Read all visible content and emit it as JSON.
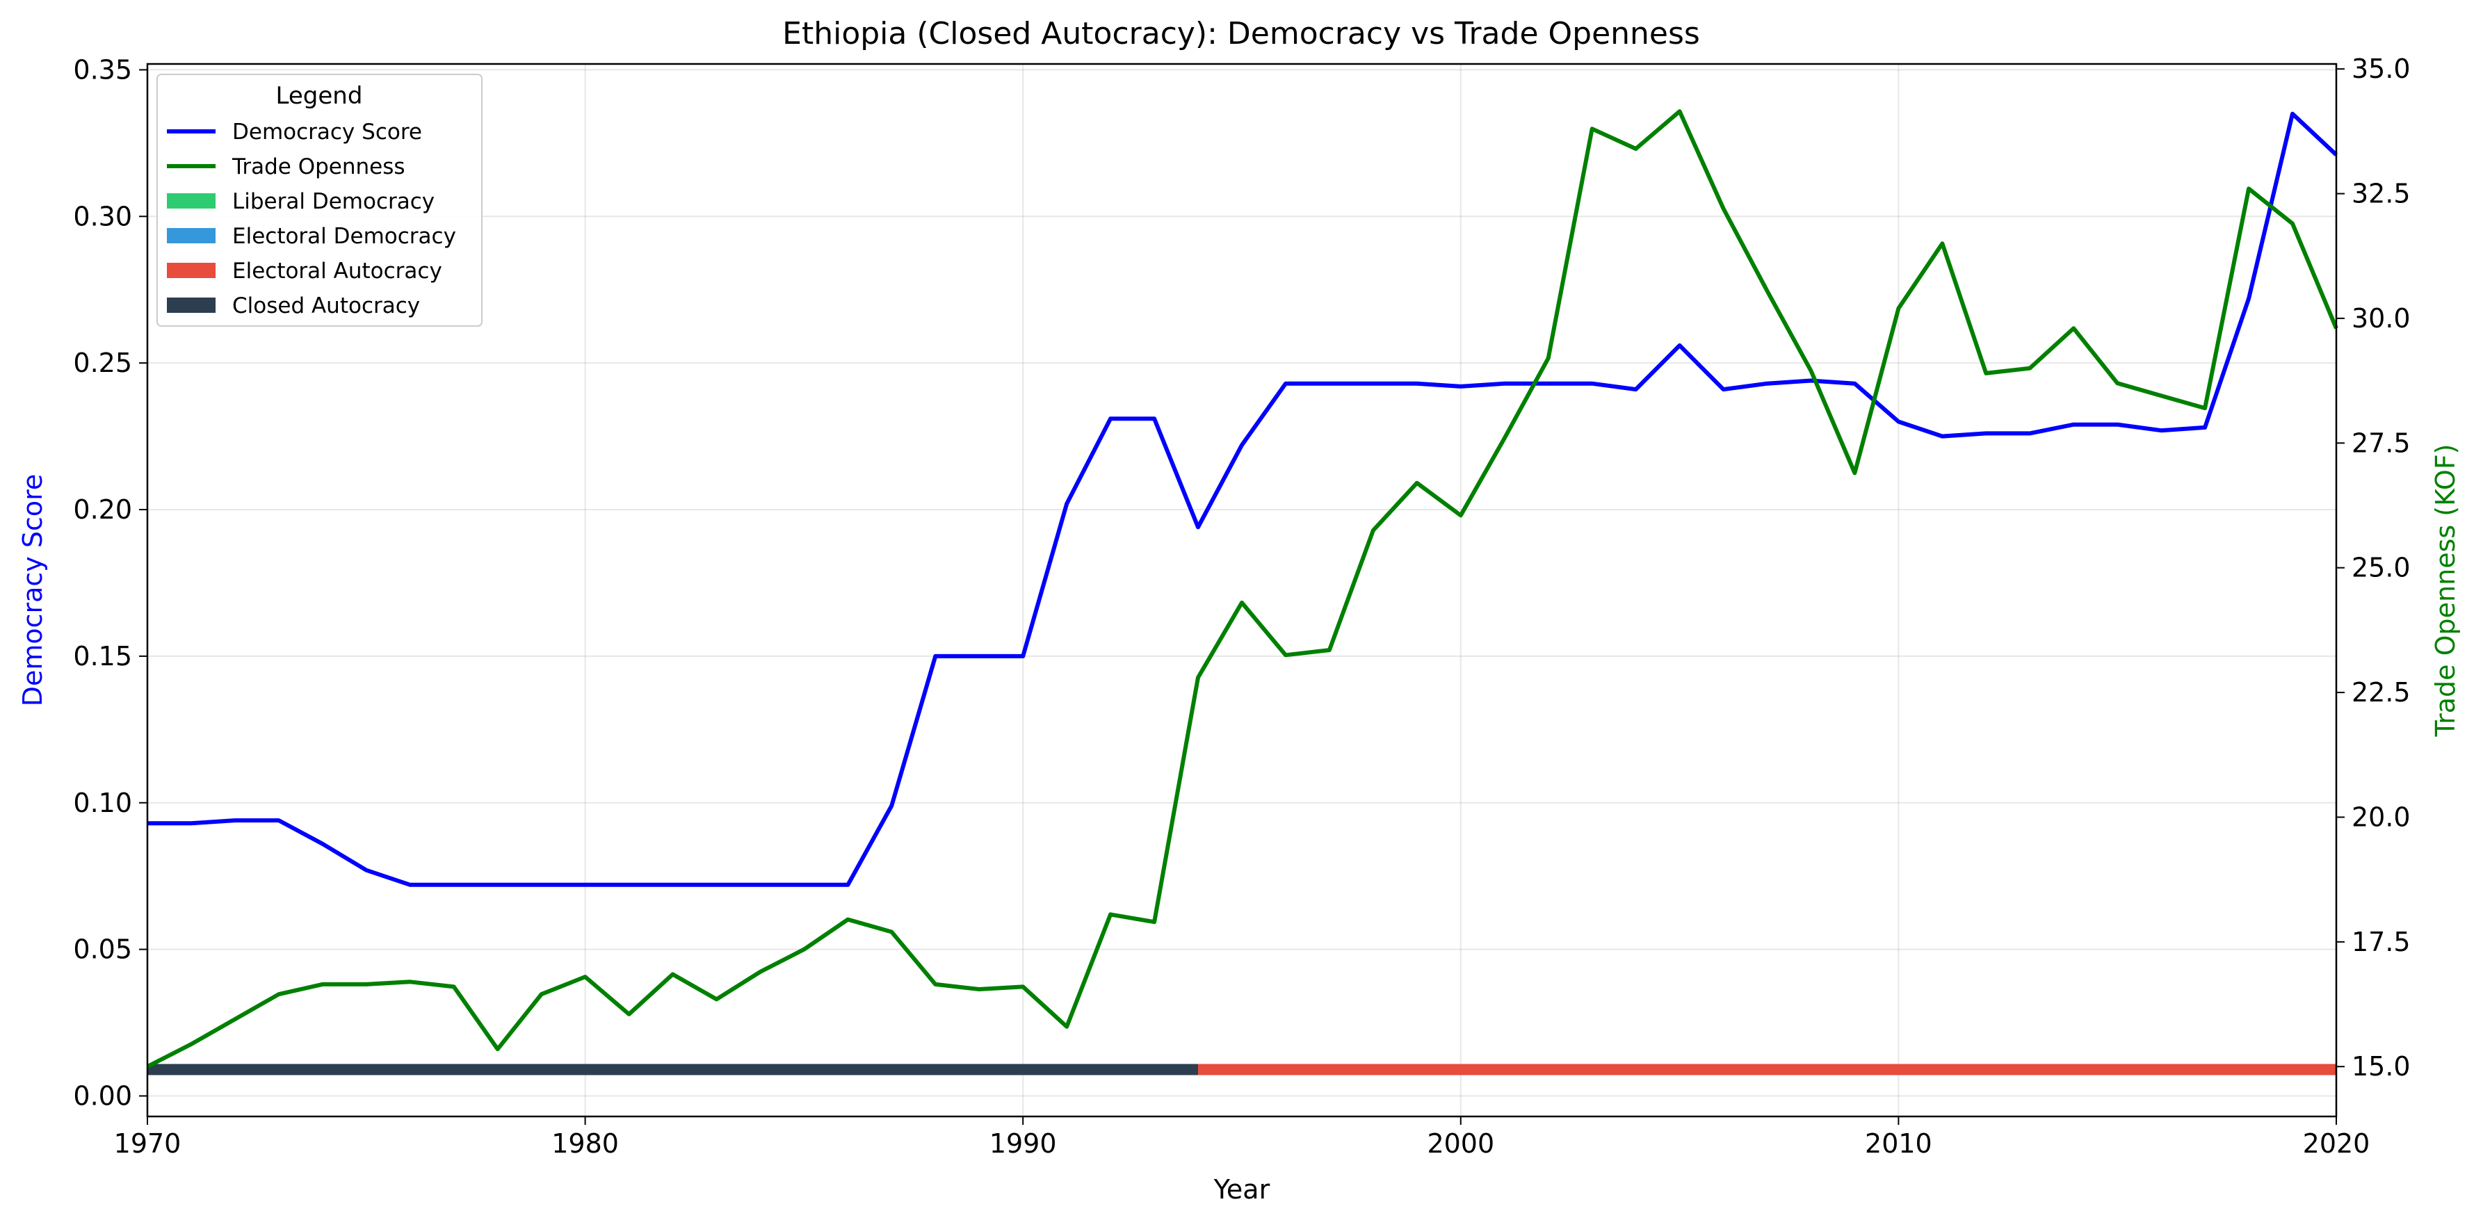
{
  "chart_data": {
    "type": "line",
    "title": "Ethiopia (Closed Autocracy): Democracy vs Trade Openness",
    "xlabel": "Year",
    "ylabel_left": "Democracy Score",
    "ylabel_right": "Trade Openness (KOF)",
    "xlim": [
      1970,
      2020
    ],
    "ylim_left": [
      -0.007,
      0.352
    ],
    "ylim_right": [
      14.0,
      35.1
    ],
    "x_ticks": [
      1970,
      1980,
      1990,
      2000,
      2010,
      2020
    ],
    "y_left_ticks": [
      "0.00",
      "0.05",
      "0.10",
      "0.15",
      "0.20",
      "0.25",
      "0.30",
      "0.35"
    ],
    "y_right_ticks": [
      "15.0",
      "17.5",
      "20.0",
      "22.5",
      "25.0",
      "27.5",
      "30.0",
      "32.5",
      "35.0"
    ],
    "grid": true,
    "legend_placement": "top-left",
    "legend_title": "Legend",
    "colors": {
      "democracy": "#0000ff",
      "trade": "#008000",
      "liberal_democracy": "#2ecc71",
      "electoral_democracy": "#3498db",
      "electoral_autocracy": "#e74c3c",
      "closed_autocracy": "#2c3e50",
      "left_label": "#0000ff",
      "right_label": "#008000"
    },
    "legend": [
      {
        "label": "Democracy Score",
        "kind": "line",
        "color_key": "democracy"
      },
      {
        "label": "Trade Openness",
        "kind": "line",
        "color_key": "trade"
      },
      {
        "label": "Liberal Democracy",
        "kind": "patch",
        "color_key": "liberal_democracy"
      },
      {
        "label": "Electoral Democracy",
        "kind": "patch",
        "color_key": "electoral_democracy"
      },
      {
        "label": "Electoral Autocracy",
        "kind": "patch",
        "color_key": "electoral_autocracy"
      },
      {
        "label": "Closed Autocracy",
        "kind": "patch",
        "color_key": "closed_autocracy"
      }
    ],
    "x": [
      1970,
      1971,
      1972,
      1973,
      1974,
      1975,
      1976,
      1977,
      1978,
      1979,
      1980,
      1981,
      1982,
      1983,
      1984,
      1985,
      1986,
      1987,
      1988,
      1989,
      1990,
      1991,
      1992,
      1993,
      1994,
      1995,
      1996,
      1997,
      1998,
      1999,
      2000,
      2001,
      2002,
      2003,
      2004,
      2005,
      2006,
      2007,
      2008,
      2009,
      2010,
      2011,
      2012,
      2013,
      2014,
      2015,
      2016,
      2017,
      2018,
      2019,
      2020
    ],
    "series": [
      {
        "name": "Democracy Score",
        "axis": "left",
        "color_key": "democracy",
        "values": [
          0.093,
          0.093,
          0.094,
          0.094,
          0.086,
          0.077,
          0.072,
          0.072,
          0.072,
          0.072,
          0.072,
          0.072,
          0.072,
          0.072,
          0.072,
          0.072,
          0.072,
          0.099,
          0.15,
          0.15,
          0.15,
          0.202,
          0.231,
          0.231,
          0.194,
          0.222,
          0.243,
          0.243,
          0.243,
          0.243,
          0.242,
          0.243,
          0.243,
          0.243,
          0.241,
          0.256,
          0.241,
          0.243,
          0.244,
          0.243,
          0.23,
          0.225,
          0.226,
          0.226,
          0.229,
          0.229,
          0.227,
          0.228,
          0.272,
          0.335,
          0.321
        ]
      },
      {
        "name": "Trade Openness",
        "axis": "right",
        "color_key": "trade",
        "values": [
          15.0,
          15.45,
          15.95,
          16.45,
          16.65,
          16.65,
          16.7,
          16.6,
          15.35,
          16.45,
          16.8,
          16.05,
          16.85,
          16.35,
          16.9,
          17.35,
          17.95,
          17.7,
          16.65,
          16.55,
          16.6,
          15.8,
          18.05,
          17.9,
          22.8,
          24.3,
          23.25,
          23.35,
          25.75,
          26.7,
          26.05,
          27.6,
          29.2,
          33.8,
          33.4,
          34.15,
          32.2,
          30.55,
          28.95,
          26.9,
          30.2,
          31.5,
          28.9,
          29.0,
          29.8,
          28.7,
          28.45,
          28.2,
          32.6,
          31.9,
          29.8
        ]
      }
    ],
    "regime_bar": [
      {
        "label": "Closed Autocracy",
        "from": 1970,
        "to": 1994,
        "color_key": "closed_autocracy"
      },
      {
        "label": "Electoral Autocracy",
        "from": 1994,
        "to": 2020,
        "color_key": "electoral_autocracy"
      }
    ],
    "regime_bar_level": 0.009
  }
}
